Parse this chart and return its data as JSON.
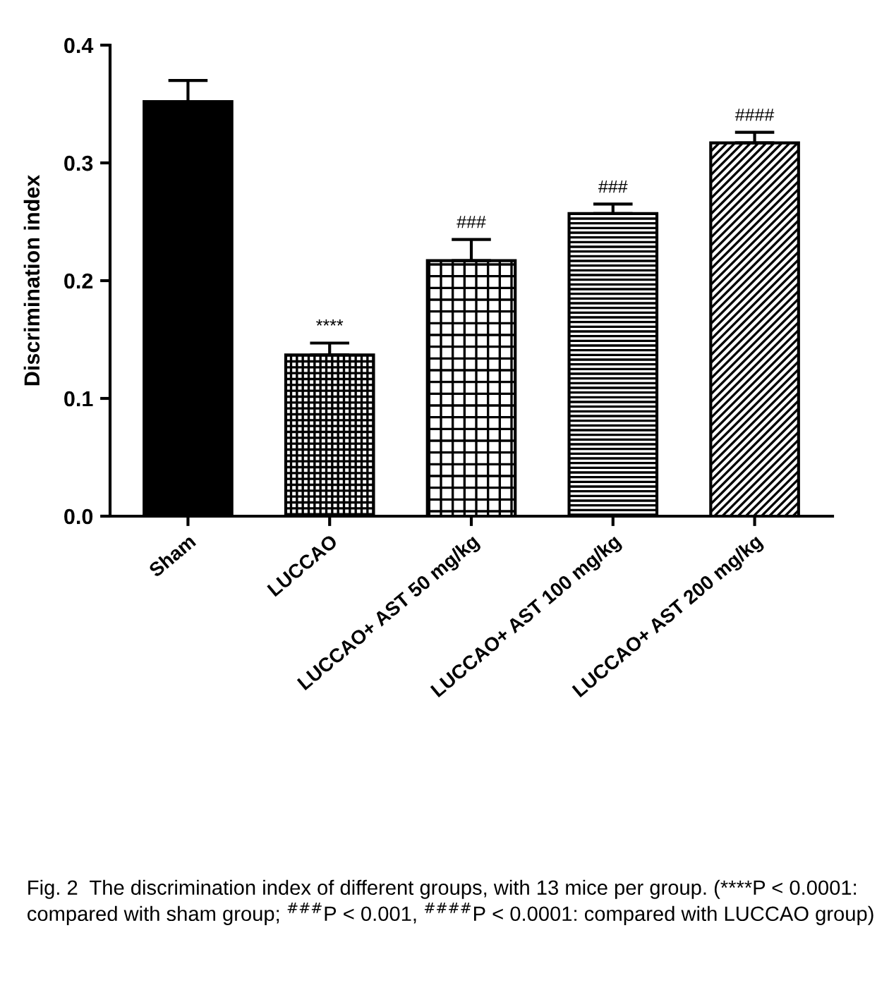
{
  "chart_data": {
    "type": "bar",
    "ylabel": "Discrimination index",
    "categories": [
      "Sham",
      "LUCCAO",
      "LUCCAO+ AST 50 mg/kg",
      "LUCCAO+ AST 100 mg/kg",
      "LUCCAO+ AST 200 mg/kg"
    ],
    "values": [
      0.352,
      0.137,
      0.217,
      0.257,
      0.317
    ],
    "errors": [
      [
        0.352,
        0.37
      ],
      [
        0.137,
        0.147
      ],
      [
        0.217,
        0.235
      ],
      [
        0.257,
        0.265
      ],
      [
        0.317,
        0.326
      ]
    ],
    "colors": [
      "#000000",
      "#000000",
      "#000000",
      "#000000",
      "#000000"
    ],
    "ylim": [
      0,
      0.4
    ],
    "yticks": [
      {
        "value": 0,
        "label": "0.0"
      },
      {
        "value": 0.1,
        "label": "0.1"
      },
      {
        "value": 0.2,
        "label": "0.2"
      },
      {
        "value": 0.3,
        "label": "0.3"
      },
      {
        "value": 0.4,
        "label": "0.4"
      }
    ],
    "grid": false,
    "legend": false,
    "annotations": [
      {
        "text": "****",
        "x": "LUCCAO",
        "y": 0.147
      },
      {
        "text": "###",
        "x": "LUCCAO+ AST 50 mg/kg",
        "y": 0.235
      },
      {
        "text": "###",
        "x": "LUCCAO+ AST 100 mg/kg",
        "y": 0.265
      },
      {
        "text": "####",
        "x": "LUCCAO+ AST 200 mg/kg",
        "y": 0.326
      },
      "Fig. 2  The discrimination index of different groups, with 13 mice per group. (****P < 0.0001: compared with sham group; $^{###}$P < 0.001, $^{####}$P < 0.0001: compared with LUCCAO group)"
    ]
  }
}
